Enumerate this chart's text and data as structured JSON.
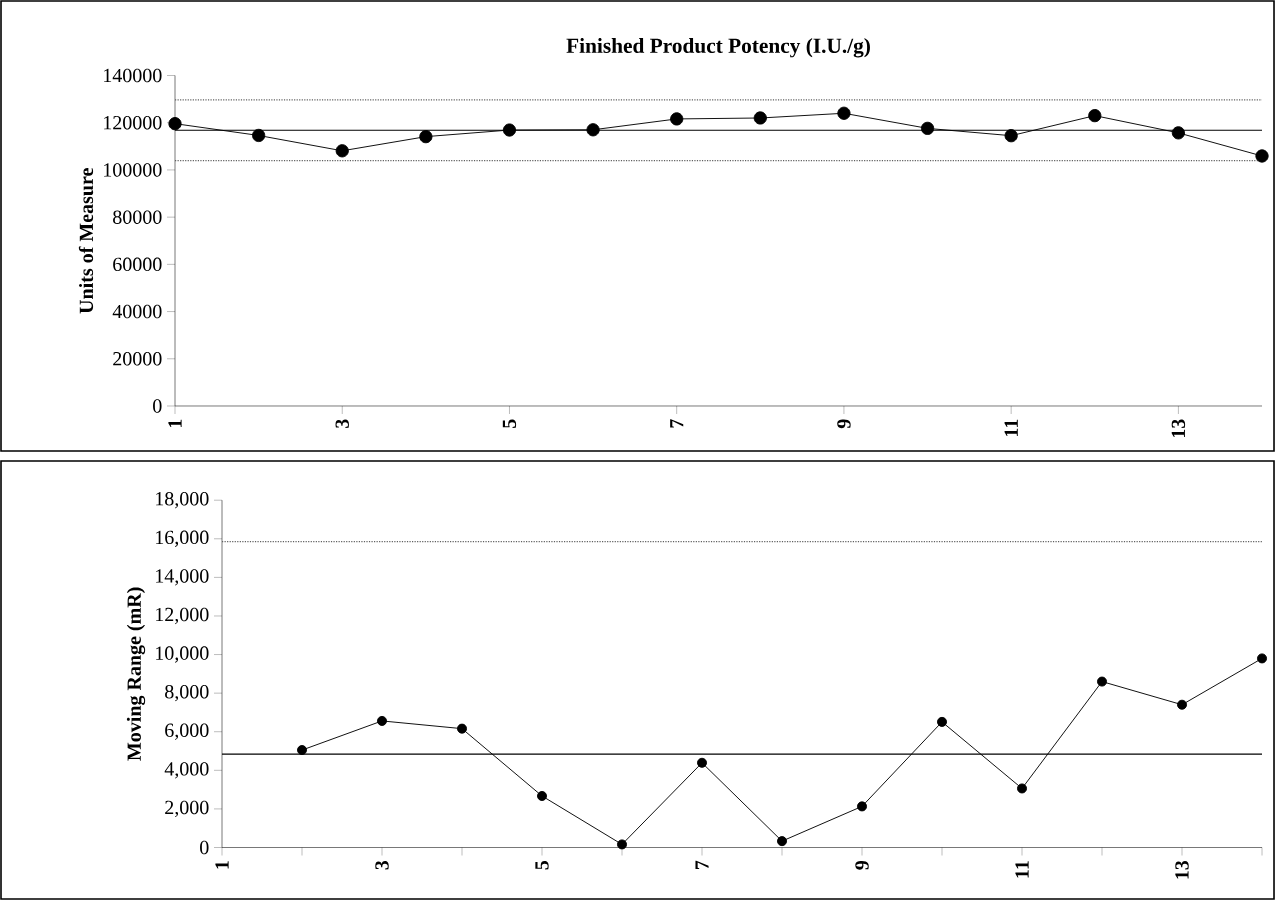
{
  "chart_data": [
    {
      "type": "line",
      "title": "Finished Product Potency (I.U./g)",
      "ylabel": "Units of Measure",
      "xlim": [
        1,
        14
      ],
      "xticks": [
        1,
        3,
        5,
        7,
        9,
        11,
        13
      ],
      "ylim": [
        0,
        140000
      ],
      "yticks": [
        0,
        20000,
        40000,
        60000,
        80000,
        100000,
        120000,
        140000
      ],
      "marker": "circle",
      "line_style": "solid",
      "series": [
        {
          "color": "#000000",
          "x": [
            1,
            2,
            3,
            4,
            5,
            6,
            7,
            8,
            9,
            10,
            11,
            12,
            13,
            14
          ],
          "values": [
            119600,
            114600,
            108100,
            114100,
            116900,
            117000,
            121600,
            122000,
            124000,
            117600,
            114500,
            123000,
            115700,
            105900
          ]
        }
      ],
      "ref_lines": [
        {
          "axis": "y",
          "value": 116800,
          "line_style": "solid"
        },
        {
          "axis": "y",
          "value": 129700,
          "line_style": "dotted",
          "color": "#606060"
        },
        {
          "axis": "y",
          "value": 103900,
          "line_style": "dotted",
          "color": "#606060"
        }
      ]
    },
    {
      "type": "line",
      "ylabel": "Moving Range (mR)",
      "xlim": [
        1,
        14
      ],
      "xticks": [
        1,
        {
          "value": 2,
          "label": null
        },
        3,
        {
          "value": 4,
          "label": null
        },
        5,
        {
          "value": 6,
          "label": null
        },
        7,
        {
          "value": 8,
          "label": null
        },
        9,
        {
          "value": 10,
          "label": null
        },
        11,
        {
          "value": 12,
          "label": null
        },
        13,
        {
          "value": 14,
          "label": null
        }
      ],
      "ylim": [
        0,
        18000
      ],
      "yticks": [
        0,
        {
          "value": 2000,
          "label": "2,000"
        },
        {
          "value": 4000,
          "label": "4,000"
        },
        {
          "value": 6000,
          "label": "6,000"
        },
        {
          "value": 8000,
          "label": "8,000"
        },
        {
          "value": 10000,
          "label": "10,000"
        },
        {
          "value": 12000,
          "label": "12,000"
        },
        {
          "value": 14000,
          "label": "14,000"
        },
        {
          "value": 16000,
          "label": "16,000"
        },
        {
          "value": 18000,
          "label": "18,000"
        }
      ],
      "marker": "circle",
      "line_style": "solid",
      "series": [
        {
          "color": "#000000",
          "x": [
            2,
            3,
            4,
            5,
            6,
            7,
            8,
            9,
            10,
            11,
            12,
            13,
            14
          ],
          "values": [
            5050,
            6560,
            6160,
            2670,
            160,
            4390,
            330,
            2130,
            6510,
            3060,
            8600,
            7400,
            9800
          ]
        }
      ],
      "ref_lines": [
        {
          "axis": "y",
          "value": 4840,
          "line_style": "solid"
        },
        {
          "axis": "y",
          "value": 15850,
          "line_style": "dotted",
          "color": "#606060"
        }
      ]
    }
  ]
}
